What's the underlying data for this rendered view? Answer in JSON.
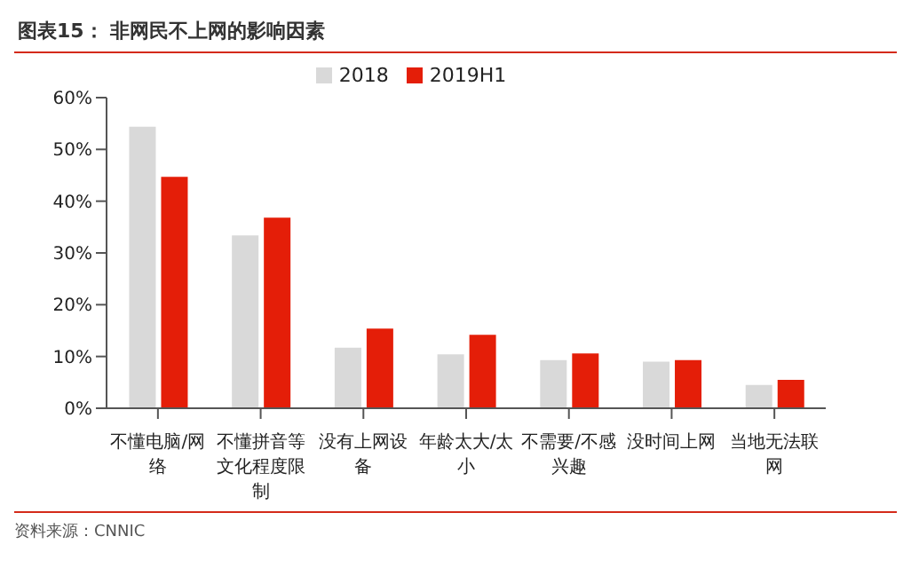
{
  "chart_data": {
    "type": "bar",
    "title": "图表15： 非网民不上网的影响因素",
    "categories": [
      "不懂电脑/网络",
      "不懂拼音等文化程度限制",
      "没有上网设备",
      "年龄太大/太小",
      "不需要/不感兴趣",
      "没时间上网",
      "当地无法联网"
    ],
    "series": [
      {
        "name": "2018",
        "color": "#d9d9d9",
        "values": [
          54.4,
          33.4,
          11.7,
          10.4,
          9.3,
          9.0,
          4.5
        ]
      },
      {
        "name": "2019H1",
        "color": "#e41e08",
        "values": [
          44.7,
          36.8,
          15.4,
          14.2,
          10.6,
          9.3,
          5.5
        ]
      }
    ],
    "ylim": [
      0,
      60
    ],
    "yticks": [
      {
        "value": 0,
        "label": "0%"
      },
      {
        "value": 10,
        "label": "10%"
      },
      {
        "value": 20,
        "label": "20%"
      },
      {
        "value": 30,
        "label": "30%"
      },
      {
        "value": 40,
        "label": "40%"
      },
      {
        "value": 50,
        "label": "50%"
      },
      {
        "value": 60,
        "label": "60%"
      }
    ],
    "grid": false,
    "legend": "top",
    "annotations": [
      "资料来源：CNNIC"
    ]
  }
}
